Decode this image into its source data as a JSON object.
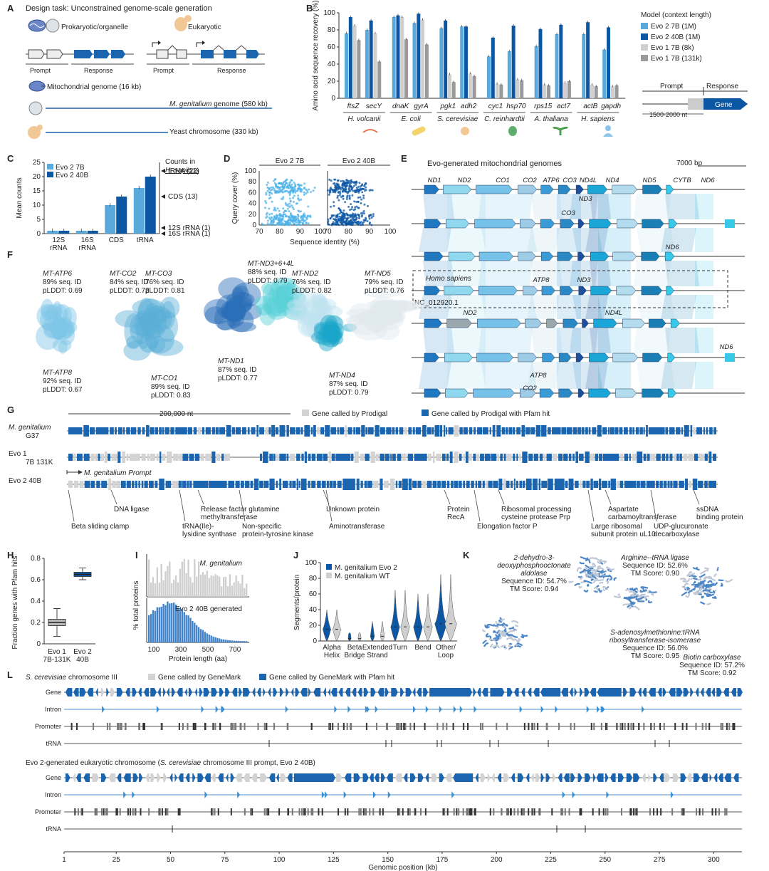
{
  "colors": {
    "evo2_7b": "#5aa9dd",
    "evo2_40b": "#0b57a4",
    "evo1_8k": "#cfcfcf",
    "evo1_131k": "#9a9a9a",
    "gene_plain": "#d3d3d3",
    "gene_pfam": "#1a64b0"
  },
  "panels": {
    "A": "A",
    "B": "B",
    "C": "C",
    "D": "D",
    "E": "E",
    "F": "F",
    "G": "G",
    "H": "H",
    "I": "I",
    "J": "J",
    "K": "K",
    "L": "L"
  },
  "panel_a": {
    "title": "Design task: Unconstrained genome-scale generation",
    "prokaryotic": "Prokaryotic/organelle",
    "eukaryotic": "Eukaryotic",
    "prompt": "Prompt",
    "response": "Response",
    "mito": "Mitochondrial genome (16 kb)",
    "mgen_italic": "M. genitalium",
    "mgen_rest": " genome (580 kb)",
    "yeast": "Yeast chromosome (330 kb)"
  },
  "chart_data": [
    {
      "id": "B",
      "type": "bar",
      "ylabel": "Amino acid sequence recovery (%)",
      "ylim": [
        0,
        100
      ],
      "yticks": [
        0,
        20,
        40,
        60,
        80,
        100
      ],
      "categories": [
        "ftsZ",
        "secY",
        "dnaK",
        "gyrA",
        "pgk1",
        "adh2",
        "cyc1",
        "hsp70",
        "rps15",
        "act7",
        "actB",
        "gapdh"
      ],
      "organisms": [
        {
          "name": "H. volcanii",
          "genes": [
            0,
            1
          ]
        },
        {
          "name": "E. coli",
          "genes": [
            2,
            3
          ]
        },
        {
          "name": "S. cerevisiae",
          "genes": [
            4,
            5
          ]
        },
        {
          "name": "C. reinhardtii",
          "genes": [
            6,
            7
          ]
        },
        {
          "name": "A. thaliana",
          "genes": [
            8,
            9
          ]
        },
        {
          "name": "H. sapiens",
          "genes": [
            10,
            11
          ]
        }
      ],
      "series": [
        {
          "name": "Evo 2 7B (1M)",
          "values": [
            76,
            80,
            95,
            88,
            82,
            84,
            49,
            55,
            61,
            75,
            75,
            57
          ]
        },
        {
          "name": "Evo 2 40B (1M)",
          "values": [
            95,
            91,
            97,
            99,
            91,
            84,
            71,
            85,
            81,
            86,
            89,
            83
          ]
        },
        {
          "name": "Evo 1 7B (8k)",
          "values": [
            85,
            76,
            95,
            92,
            28,
            29,
            17,
            22,
            16,
            18,
            16,
            14
          ]
        },
        {
          "name": "Evo 1 7B (131k)",
          "values": [
            68,
            43,
            69,
            63,
            19,
            26,
            16,
            21,
            15,
            20,
            14,
            15
          ]
        }
      ],
      "legend_title": "Model (context length)"
    },
    {
      "id": "C",
      "type": "bar",
      "ylabel": "Mean counts",
      "ylim": [
        0,
        25
      ],
      "yticks": [
        0,
        5,
        10,
        15,
        20,
        25
      ],
      "categories": [
        "12S rRNA",
        "16S rRNA",
        "CDS",
        "tRNA"
      ],
      "series": [
        {
          "name": "Evo 2 7B",
          "values": [
            1,
            1,
            10,
            16
          ]
        },
        {
          "name": "Evo 2 40B",
          "values": [
            1,
            1,
            13,
            20
          ]
        }
      ],
      "reference_title": "Counts in",
      "reference_species": "H. sapiens",
      "reference": [
        {
          "label": "tRNA (22)",
          "value": 22
        },
        {
          "label": "CDS (13)",
          "value": 13
        },
        {
          "label": "12S rRNA (1)",
          "value": 1
        },
        {
          "label": "16S rRNA (1)",
          "value": 1
        }
      ]
    },
    {
      "id": "D",
      "type": "scatter",
      "xlabel": "Sequence identity (%)",
      "ylabel": "Query cover (%)",
      "xlim": [
        70,
        100
      ],
      "ylim": [
        0,
        100
      ],
      "xticks": [
        70,
        80,
        90,
        100
      ],
      "yticks": [
        0,
        20,
        40,
        60,
        80,
        100
      ],
      "subplots": [
        {
          "name": "Evo 2 7B"
        },
        {
          "name": "Evo 2 40B"
        }
      ]
    },
    {
      "id": "H",
      "type": "box",
      "ylabel": "Fraction genes with Pfam hits",
      "ylim": [
        0,
        0.8
      ],
      "yticks": [
        0,
        0.2,
        0.4,
        0.6,
        0.8
      ],
      "categories": [
        "Evo 1 7B-131K",
        "Evo 2 40B"
      ],
      "boxes": [
        {
          "min": 0.07,
          "q1": 0.17,
          "median": 0.2,
          "q3": 0.23,
          "max": 0.33
        },
        {
          "min": 0.6,
          "q1": 0.63,
          "median": 0.65,
          "q3": 0.67,
          "max": 0.71
        }
      ]
    },
    {
      "id": "I",
      "type": "bar",
      "xlabel": "Protein length (aa)",
      "ylabel": "% total proteins",
      "xticks": [
        100,
        300,
        500,
        700
      ],
      "subplots": [
        {
          "name": "M. genitalium"
        },
        {
          "name": "Evo 2 40B generated"
        }
      ]
    },
    {
      "id": "J",
      "type": "violin",
      "ylabel": "Segments/protein",
      "ylim": [
        0,
        100
      ],
      "yticks": [
        0,
        20,
        40,
        60,
        80,
        100
      ],
      "categories": [
        "Alpha Helix",
        "Beta Bridge",
        "Extended Strand",
        "Turn",
        "Bend",
        "Other/ Loop"
      ],
      "series": [
        {
          "name": "M. genitalium Evo 2"
        },
        {
          "name": "M. genitalium WT"
        }
      ]
    }
  ],
  "panel_b": {
    "prompt": "Prompt",
    "response": "Response",
    "gene": "Gene",
    "nt": "1500-2000 nt"
  },
  "panel_e": {
    "title": "Evo-generated mitochondrial genomes",
    "scale": "7000 bp",
    "genes_top": [
      "ND1",
      "ND2",
      "CO1",
      "CO2",
      "ATP6",
      "CO3",
      "ND4L",
      "ND4",
      "ND5",
      "CYTB",
      "ND6"
    ],
    "extra": {
      "nd3": "ND3",
      "co3": "CO3",
      "nd6": "ND6",
      "hs": "Homo sapiens",
      "atp8": "ATP8",
      "nd3b": "ND3",
      "acc": "NC_012920.1",
      "nd2": "ND2",
      "nd4l": "ND4L",
      "nd6b": "ND6",
      "atp8b": "ATP8",
      "co2": "CO2"
    }
  },
  "panel_f": [
    {
      "name": "MT-ATP6",
      "id": "89% seq. ID",
      "plddt": "pLDDT: 0.69"
    },
    {
      "name": "MT-CO2",
      "id": "84% seq. ID",
      "plddt": "pLDDT: 0.72"
    },
    {
      "name": "MT-CO3",
      "id": "76% seq. ID",
      "plddt": "pLDDT: 0.81"
    },
    {
      "name": "MT-ND3+6+4L",
      "id": "88% seq. ID",
      "plddt": "pLDDT: 0.79"
    },
    {
      "name": "MT-ND2",
      "id": "76% seq. ID",
      "plddt": "pLDDT: 0.82"
    },
    {
      "name": "MT-ND5",
      "id": "79% seq. ID",
      "plddt": "pLDDT: 0.76"
    },
    {
      "name": "MT-ATP8",
      "id": "92% seq. ID",
      "plddt": "pLDDT: 0.67"
    },
    {
      "name": "MT-CO1",
      "id": "89% seq. ID",
      "plddt": "pLDDT: 0.83"
    },
    {
      "name": "MT-ND1",
      "id": "87% seq. ID",
      "plddt": "pLDDT: 0.77"
    },
    {
      "name": "MT-ND4",
      "id": "87% seq. ID",
      "plddt": "pLDDT: 0.79"
    }
  ],
  "panel_g": {
    "scale": "200,000 nt",
    "legend_plain": "Gene called by Prodigal",
    "legend_pfam": "Gene called by Prodigal with Pfam hit",
    "track1_a": "M. genitalium",
    "track1_b": "G37",
    "track2_a": "Evo 1",
    "track2_b": "7B 131K",
    "prompt_label": "M. genitalium Prompt",
    "track3": "Evo 2 40B",
    "annotations": [
      "Beta sliding clamp",
      "DNA ligase",
      "tRNA(Ile)-",
      "lysidine synthase",
      "Release factor glutamine",
      "methyltransferase",
      "Non-specific",
      "protein-tyrosine kinase",
      "Unknown protein",
      "Aminotransferase",
      "Protein",
      "RecA",
      "Ribosomal processing",
      "cysteine protease Prp",
      "Elongation factor P",
      "Aspartate",
      "carbamoyltransferase",
      "Large ribosomal",
      "subunit protein uL10",
      "UDP-glucuronate",
      "decarboxylase",
      "ssDNA",
      "binding protein"
    ]
  },
  "panel_k": [
    {
      "name1": "2-dehydro-3-",
      "name2": "deoxyphosphooctonate",
      "name3": "aldolase",
      "id": "Sequence ID: 54.7%",
      "tm": "TM Score: 0.94"
    },
    {
      "name1": "Arginine--tRNA ligase",
      "id": "Sequence ID: 52.6%",
      "tm": "TM Score: 0.90"
    },
    {
      "name1": "S-adenosylmethionine:tRNA",
      "name2": "ribosyltransferase-isomerase",
      "id": "Sequence ID: 56.0%",
      "tm": "TM Score: 0.95"
    },
    {
      "name1": "Biotin carboxylase",
      "id": "Sequence ID: 57.2%",
      "tm": "TM Score: 0.92"
    }
  ],
  "panel_l": {
    "title1_i": "S. cerevisiae",
    "title1_r": " chromosome III",
    "legend_plain": "Gene called by GeneMark",
    "legend_pfam": "Gene called by GeneMark with Pfam hit",
    "title2_a": "Evo 2-generated eukaryotic chromosome (",
    "title2_i": "S. cerevisiae",
    "title2_b": " chromosome III prompt, Evo 2 40B)",
    "tracks": [
      "Gene",
      "Intron",
      "Promoter",
      "tRNA"
    ],
    "xticks": [
      1,
      25,
      50,
      75,
      100,
      125,
      150,
      175,
      200,
      225,
      250,
      275,
      300
    ],
    "xlabel": "Genomic position (kb)"
  }
}
